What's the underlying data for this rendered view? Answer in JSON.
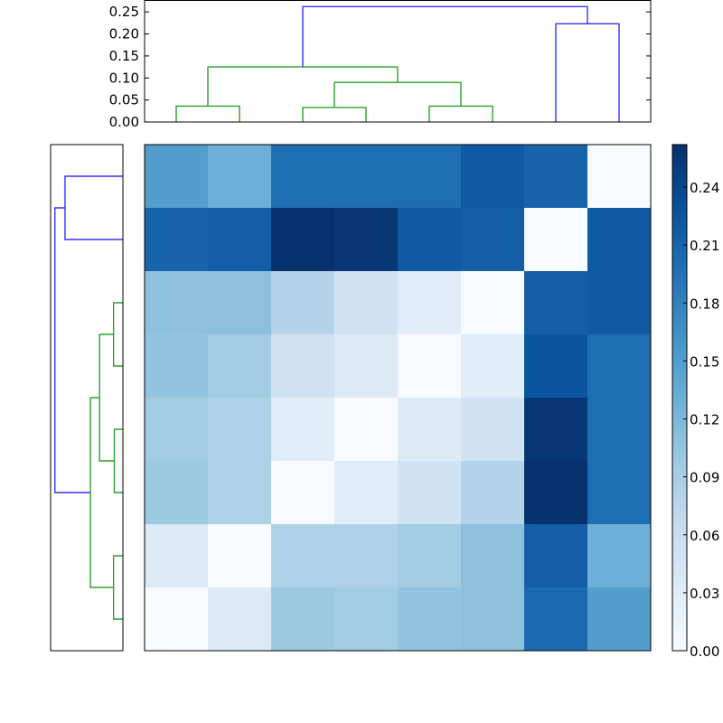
{
  "chart_data": {
    "type": "heatmap",
    "title": "",
    "description": "Clustered distance matrix heatmap with row and column dendrograms and colorbar",
    "matrix": [
      [
        0.15,
        0.13,
        0.2,
        0.2,
        0.2,
        0.22,
        0.21,
        0.0
      ],
      [
        0.21,
        0.215,
        0.26,
        0.255,
        0.22,
        0.215,
        0.0,
        0.22
      ],
      [
        0.11,
        0.11,
        0.08,
        0.05,
        0.03,
        0.0,
        0.215,
        0.22
      ],
      [
        0.105,
        0.095,
        0.05,
        0.035,
        0.0,
        0.03,
        0.225,
        0.2
      ],
      [
        0.095,
        0.085,
        0.03,
        0.0,
        0.035,
        0.05,
        0.255,
        0.2
      ],
      [
        0.1,
        0.085,
        0.0,
        0.03,
        0.05,
        0.08,
        0.26,
        0.2
      ],
      [
        0.035,
        0.0,
        0.085,
        0.085,
        0.095,
        0.11,
        0.215,
        0.13
      ],
      [
        0.0,
        0.035,
        0.1,
        0.095,
        0.105,
        0.11,
        0.205,
        0.15
      ]
    ],
    "xticklabels": [],
    "yticklabels": [],
    "colormap": "Blues",
    "colorbar": {
      "vmin": 0.0,
      "vmax": 0.262,
      "ticks": [
        0.0,
        0.03,
        0.06,
        0.09,
        0.12,
        0.15,
        0.18,
        0.21,
        0.24
      ],
      "tick_labels": [
        "0.00",
        "0.03",
        "0.06",
        "0.09",
        "0.12",
        "0.15",
        "0.18",
        "0.21",
        "0.24"
      ]
    },
    "top_dendrogram": {
      "ylim": [
        0.0,
        0.275
      ],
      "yticks": [
        0.0,
        0.05,
        0.1,
        0.15,
        0.2,
        0.25
      ],
      "ytick_labels": [
        "0.00",
        "0.05",
        "0.10",
        "0.15",
        "0.20",
        "0.25"
      ],
      "links": [
        {
          "left": 0,
          "right": 1,
          "height": 0.036,
          "color": "green"
        },
        {
          "left": 2,
          "right": 3,
          "height": 0.033,
          "color": "green"
        },
        {
          "left": 4,
          "right": 5,
          "height": 0.036,
          "color": "green"
        },
        {
          "left": "2-3",
          "right": "4-5",
          "height": 0.09,
          "color": "green"
        },
        {
          "left": "0-1",
          "right": "2-5",
          "height": 0.125,
          "color": "green"
        },
        {
          "left": 6,
          "right": 7,
          "height": 0.223,
          "color": "blue"
        },
        {
          "left": "0-5",
          "right": "6-7",
          "height": 0.262,
          "color": "blue"
        }
      ]
    },
    "left_dendrogram": {
      "orientation": "left",
      "links": [
        {
          "top": 0,
          "bottom": 1,
          "height": 0.223,
          "color": "blue"
        },
        {
          "top": 2,
          "bottom": 3,
          "height": 0.036,
          "color": "green"
        },
        {
          "top": 4,
          "bottom": 5,
          "height": 0.033,
          "color": "green"
        },
        {
          "top": "2-3",
          "bottom": "4-5",
          "height": 0.09,
          "color": "green"
        },
        {
          "top": 6,
          "bottom": 7,
          "height": 0.036,
          "color": "green"
        },
        {
          "top": "2-5",
          "bottom": "6-7",
          "height": 0.125,
          "color": "green"
        },
        {
          "top": "0-1",
          "bottom": "2-7",
          "height": 0.262,
          "color": "blue"
        }
      ]
    },
    "colors": {
      "cluster_color": "#2ca02c",
      "above_threshold_color": "#3333ff"
    }
  }
}
